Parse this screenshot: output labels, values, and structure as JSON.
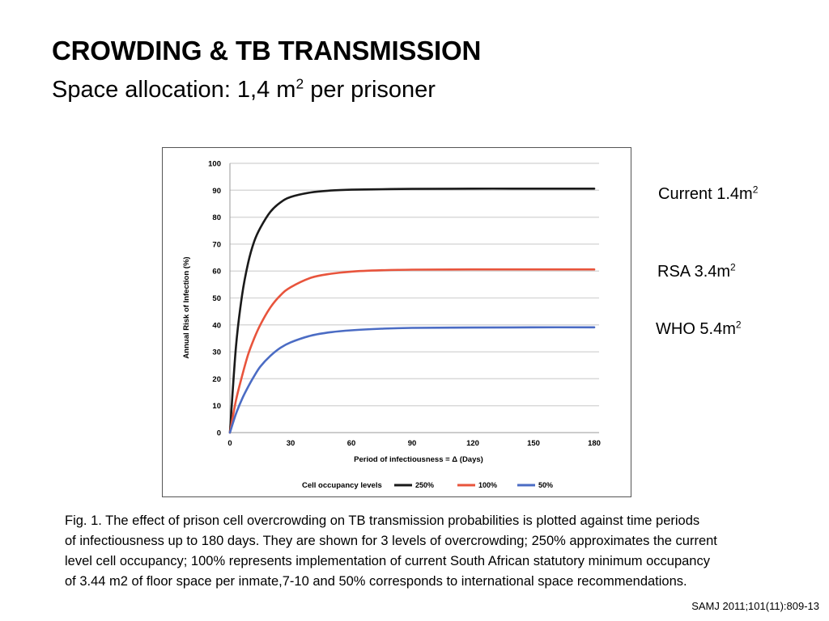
{
  "slide": {
    "title": "CROWDING & TB TRANSMISSION",
    "subtitle_prefix": "Space allocation: 1,4 m",
    "subtitle_sup": "2",
    "subtitle_suffix": " per prisoner"
  },
  "side_labels": [
    {
      "text": "Current 1.4m",
      "sup": "2"
    },
    {
      "text": "RSA  3.4m",
      "sup": "2"
    },
    {
      "text": "WHO  5.4m",
      "sup": "2"
    }
  ],
  "caption": {
    "lines": [
      "Fig. 1. The effect of prison cell overcrowding on TB transmission probabilities is plotted against time periods",
      "of infectiousness up to 180 days. They are shown for 3 levels of overcrowding; 250% approximates the current",
      "level cell occupancy; 100% represents implementation of current South African statutory minimum occupancy",
      "of 3.44 m2 of floor space per inmate,7-10 and 50% corresponds to international space recommendations."
    ]
  },
  "source": "SAMJ 2011;101(11):809-13",
  "colors": {
    "series_250": "#1a1a1a",
    "series_100": "#e8543c",
    "series_50": "#4b6cc4",
    "grid": "#d9d9d9"
  },
  "chart_data": {
    "type": "line",
    "xlabel": "Period of infectiousness = Δ (Days)",
    "ylabel": "Annual Risk of Infection (%)",
    "xlim": [
      0,
      180
    ],
    "ylim": [
      0,
      100
    ],
    "x_ticks": [
      "0",
      "30",
      "60",
      "90",
      "120",
      "150",
      "180"
    ],
    "y_ticks": [
      "0",
      "10",
      "20",
      "30",
      "40",
      "50",
      "60",
      "70",
      "80",
      "90",
      "100"
    ],
    "grid": true,
    "legend_title": "Cell occupancy levels",
    "legend_position": "bottom",
    "x": [
      0,
      3,
      6,
      9,
      12,
      15,
      20,
      25,
      30,
      40,
      50,
      60,
      75,
      90,
      120,
      150,
      180
    ],
    "series": [
      {
        "name": "250%",
        "color": "#1a1a1a",
        "values": [
          0,
          32,
          51,
          63,
          71,
          76,
          82,
          85.5,
          87.5,
          89.2,
          89.9,
          90.2,
          90.4,
          90.5,
          90.6,
          90.6,
          90.6
        ]
      },
      {
        "name": "100%",
        "color": "#e8543c",
        "values": [
          0,
          12,
          21,
          29,
          35,
          40,
          46.5,
          51,
          54,
          57.5,
          59,
          59.8,
          60.3,
          60.5,
          60.6,
          60.6,
          60.6
        ]
      },
      {
        "name": "50%",
        "color": "#4b6cc4",
        "values": [
          0,
          7,
          12.5,
          17,
          21,
          24.5,
          28.5,
          31.5,
          33.5,
          36,
          37.3,
          38,
          38.6,
          38.9,
          39,
          39.1,
          39.1
        ]
      }
    ]
  }
}
